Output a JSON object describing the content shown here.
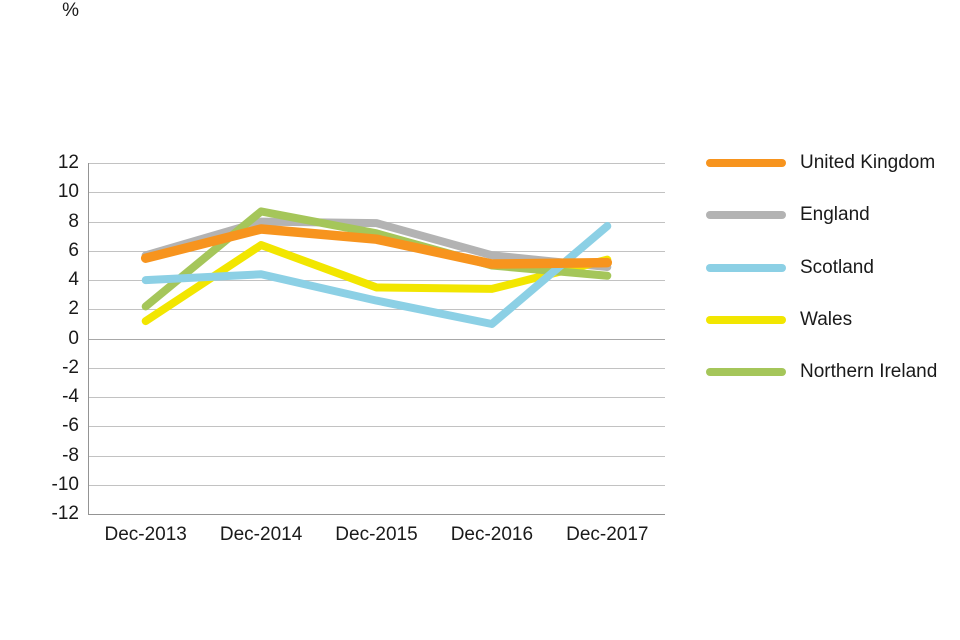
{
  "chart_data": {
    "type": "line",
    "title": "",
    "xlabel": "",
    "ylabel": "%",
    "categories": [
      "Dec-2013",
      "Dec-2014",
      "Dec-2015",
      "Dec-2016",
      "Dec-2017"
    ],
    "ylim": [
      -12,
      12
    ],
    "yticks": [
      12,
      10,
      8,
      6,
      4,
      2,
      0,
      -2,
      -4,
      -6,
      -8,
      -10,
      -12
    ],
    "grid": "horizontal",
    "legend_position": "right",
    "series": [
      {
        "name": "United Kingdom",
        "color": "#F7941E",
        "values": [
          5.5,
          7.5,
          6.8,
          5.1,
          5.2
        ]
      },
      {
        "name": "England",
        "color": "#B3B3B3",
        "values": [
          5.7,
          8.0,
          7.9,
          5.7,
          4.9
        ]
      },
      {
        "name": "Scotland",
        "color": "#8CD0E5",
        "values": [
          4.0,
          4.4,
          2.6,
          1.0,
          7.7
        ]
      },
      {
        "name": "Wales",
        "color": "#F2E600",
        "values": [
          1.2,
          6.4,
          3.5,
          3.4,
          5.4
        ]
      },
      {
        "name": "Northern Ireland",
        "color": "#A5C65A",
        "values": [
          2.2,
          8.7,
          7.2,
          5.0,
          4.3
        ]
      }
    ]
  },
  "colors": {
    "text": "#1A1A1A",
    "gridline": "#C2C2C2",
    "zero_line": "#A8A8A8",
    "axis": "#949494"
  }
}
